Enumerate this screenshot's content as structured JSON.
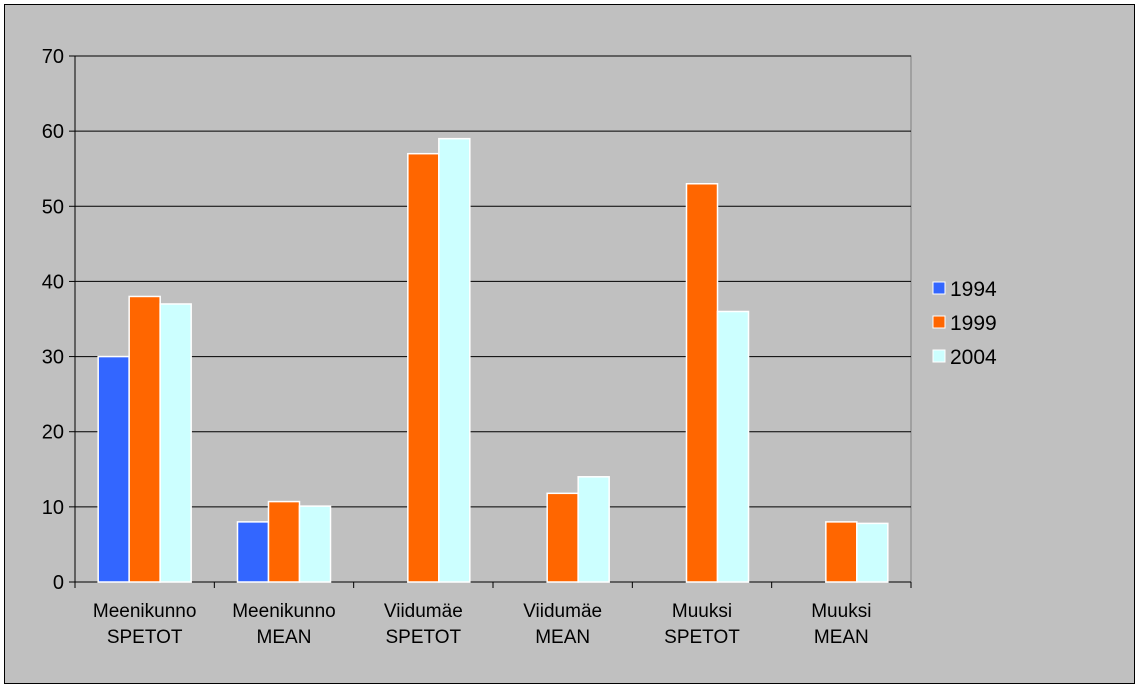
{
  "chart_data": {
    "type": "bar",
    "categories": [
      [
        "Meenikunno",
        "SPETOT"
      ],
      [
        "Meenikunno",
        "MEAN"
      ],
      [
        "Viidumäe",
        "SPETOT"
      ],
      [
        "Viidumäe",
        "MEAN"
      ],
      [
        "Muuksi",
        "SPETOT"
      ],
      [
        "Muuksi",
        "MEAN"
      ]
    ],
    "series": [
      {
        "name": "1994",
        "color": "#3366ff",
        "values": [
          30,
          8,
          null,
          null,
          null,
          null
        ]
      },
      {
        "name": "1999",
        "color": "#ff6600",
        "values": [
          38,
          10.7,
          57,
          11.8,
          53,
          8
        ]
      },
      {
        "name": "2004",
        "color": "#ccffff",
        "values": [
          37,
          10.1,
          59,
          14,
          36,
          7.8
        ]
      }
    ],
    "ylim": [
      0,
      70
    ],
    "yticks": [
      0,
      10,
      20,
      30,
      40,
      50,
      60,
      70
    ],
    "grid": true,
    "legend_position": "right",
    "background": "#c0c0c0"
  }
}
